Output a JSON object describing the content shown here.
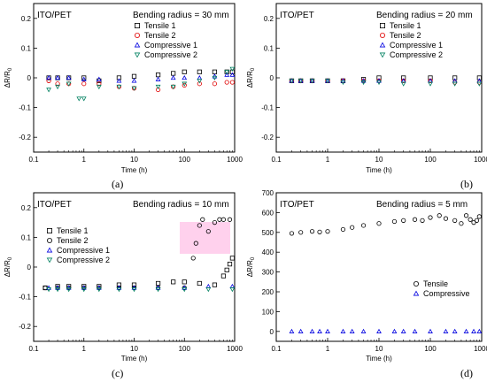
{
  "chart_data": [
    {
      "id": "a",
      "type": "scatter",
      "panel_label": "(a)",
      "sample_label": "ITO/PET",
      "annotation": "Bending radius = 30 mm",
      "xlabel": "Time (h)",
      "ylabel": "ΔR/R",
      "ylabel_sub": "0",
      "xscale": "log",
      "xlim": [
        0.1,
        1000
      ],
      "ylim": [
        -0.25,
        0.25
      ],
      "xticks": [
        0.1,
        1,
        10,
        100,
        1000
      ],
      "xticklabels": [
        "0.1",
        "1",
        "10",
        "100",
        "1000"
      ],
      "yticks": [
        -0.2,
        -0.1,
        0,
        0.1,
        0.2
      ],
      "yticklabels": [
        "-0.2",
        "-0.1",
        "0",
        "0.1",
        "0.2"
      ],
      "legend_position": "top-right",
      "series": [
        {
          "name": "Tensile 1",
          "marker": "square",
          "color": "#000000",
          "x": [
            0.2,
            0.3,
            0.5,
            1,
            2,
            5,
            10,
            30,
            60,
            100,
            200,
            400,
            700,
            900
          ],
          "y": [
            0.0,
            0.0,
            0.0,
            0.0,
            -0.01,
            0.0,
            0.005,
            0.01,
            0.015,
            0.02,
            0.02,
            0.02,
            0.02,
            0.02
          ]
        },
        {
          "name": "Tensile 2",
          "marker": "circle",
          "color": "#e00000",
          "x": [
            0.2,
            0.3,
            0.5,
            1,
            2,
            5,
            10,
            30,
            60,
            100,
            200,
            400,
            700,
            900
          ],
          "y": [
            -0.01,
            -0.02,
            -0.02,
            -0.02,
            -0.02,
            -0.03,
            -0.035,
            -0.04,
            -0.03,
            -0.025,
            -0.02,
            -0.02,
            -0.015,
            -0.015
          ]
        },
        {
          "name": "Compressive 1",
          "marker": "triangle-up",
          "color": "#0000e0",
          "x": [
            0.2,
            0.3,
            0.5,
            1,
            2,
            5,
            10,
            30,
            60,
            100,
            200,
            400,
            700,
            900
          ],
          "y": [
            0.0,
            0.0,
            0.0,
            -0.005,
            -0.005,
            -0.01,
            -0.01,
            -0.005,
            0.0,
            0.0,
            0.0,
            0.005,
            0.01,
            0.01
          ]
        },
        {
          "name": "Compressive 2",
          "marker": "triangle-down",
          "color": "#008060",
          "x": [
            0.2,
            0.3,
            0.5,
            0.8,
            1,
            2,
            5,
            10,
            30,
            60,
            100,
            200,
            400,
            700,
            900
          ],
          "y": [
            -0.04,
            -0.03,
            -0.02,
            -0.07,
            -0.07,
            -0.03,
            -0.03,
            -0.035,
            -0.03,
            -0.03,
            -0.02,
            -0.01,
            0.0,
            0.02,
            0.03
          ]
        }
      ]
    },
    {
      "id": "b",
      "type": "scatter",
      "panel_label": "(b)",
      "sample_label": "ITO/PET",
      "annotation": "Bending radius = 20 mm",
      "xlabel": "Time (h)",
      "ylabel": "ΔR/R",
      "ylabel_sub": "0",
      "xscale": "log",
      "xlim": [
        0.1,
        1000
      ],
      "ylim": [
        -0.25,
        0.25
      ],
      "xticks": [
        0.1,
        1,
        10,
        100,
        1000
      ],
      "xticklabels": [
        "0.1",
        "1",
        "10",
        "100",
        "1000"
      ],
      "yticks": [
        -0.2,
        -0.1,
        0,
        0.1,
        0.2
      ],
      "yticklabels": [
        "-0.2",
        "-0.1",
        "0",
        "0.1",
        "0.2"
      ],
      "legend_position": "top-right",
      "series": [
        {
          "name": "Tensile 1",
          "marker": "square",
          "color": "#000000",
          "x": [
            0.2,
            0.3,
            0.5,
            1,
            2,
            5,
            10,
            30,
            100,
            300,
            900
          ],
          "y": [
            -0.01,
            -0.01,
            -0.01,
            -0.01,
            -0.01,
            -0.005,
            0.0,
            0.0,
            0.0,
            0.0,
            0.0
          ]
        },
        {
          "name": "Tensile 2",
          "marker": "circle",
          "color": "#e00000",
          "x": [
            0.2,
            0.3,
            0.5,
            1,
            2,
            5,
            10,
            30,
            100,
            300,
            900
          ],
          "y": [
            -0.01,
            -0.01,
            -0.01,
            -0.01,
            -0.01,
            -0.01,
            -0.01,
            -0.01,
            -0.01,
            -0.015,
            -0.015
          ]
        },
        {
          "name": "Compressive 1",
          "marker": "triangle-up",
          "color": "#0000e0",
          "x": [
            0.2,
            0.3,
            0.5,
            1,
            2,
            5,
            10,
            30,
            100,
            300,
            900
          ],
          "y": [
            -0.01,
            -0.01,
            -0.01,
            -0.01,
            -0.01,
            -0.01,
            -0.01,
            -0.01,
            -0.01,
            -0.01,
            -0.01
          ]
        },
        {
          "name": "Compressive 2",
          "marker": "triangle-down",
          "color": "#008060",
          "x": [
            0.2,
            0.3,
            0.5,
            1,
            2,
            5,
            10,
            30,
            100,
            300,
            900
          ],
          "y": [
            -0.01,
            -0.01,
            -0.01,
            -0.01,
            -0.015,
            -0.015,
            -0.015,
            -0.02,
            -0.02,
            -0.02,
            -0.02
          ]
        }
      ]
    },
    {
      "id": "c",
      "type": "scatter",
      "panel_label": "(c)",
      "sample_label": "ITO/PET",
      "annotation": "Bending radius = 10 mm",
      "xlabel": "Time (h)",
      "ylabel": "ΔR/R",
      "ylabel_sub": "0",
      "xscale": "log",
      "xlim": [
        0.1,
        1000
      ],
      "ylim": [
        -0.25,
        0.25
      ],
      "xticks": [
        0.1,
        1,
        10,
        100,
        1000
      ],
      "xticklabels": [
        "0.1",
        "1",
        "10",
        "100",
        "1000"
      ],
      "yticks": [
        -0.2,
        -0.1,
        0,
        0.1,
        0.2
      ],
      "yticklabels": [
        "-0.2",
        "-0.1",
        "0",
        "0.1",
        "0.2"
      ],
      "legend_position": "top-left",
      "series": [
        {
          "name": "Tensile 1",
          "marker": "square",
          "color": "#000000",
          "x": [
            0.17,
            0.3,
            0.5,
            1,
            2,
            5,
            10,
            30,
            60,
            100,
            200,
            400,
            600,
            700,
            800,
            900
          ],
          "y": [
            -0.07,
            -0.065,
            -0.065,
            -0.065,
            -0.065,
            -0.06,
            -0.06,
            -0.055,
            -0.05,
            -0.05,
            -0.055,
            -0.06,
            -0.03,
            -0.01,
            0.01,
            0.03
          ]
        },
        {
          "name": "Tensile 2",
          "marker": "circle",
          "color": "#000000",
          "x": [
            0.17,
            0.3,
            0.5,
            1,
            2,
            5,
            10,
            30,
            100,
            150,
            170,
            200,
            230,
            300,
            400,
            500,
            600,
            800
          ],
          "y": [
            -0.07,
            -0.07,
            -0.07,
            -0.07,
            -0.07,
            -0.07,
            -0.07,
            -0.07,
            -0.07,
            0.03,
            0.08,
            0.14,
            0.16,
            0.12,
            0.15,
            0.16,
            0.16,
            0.16
          ]
        },
        {
          "name": "Compressive 1",
          "marker": "triangle-up",
          "color": "#0000e0",
          "x": [
            0.2,
            0.3,
            0.5,
            1,
            2,
            5,
            10,
            30,
            100,
            300,
            900
          ],
          "y": [
            -0.07,
            -0.07,
            -0.07,
            -0.07,
            -0.07,
            -0.07,
            -0.07,
            -0.07,
            -0.07,
            -0.065,
            -0.065
          ]
        },
        {
          "name": "Compressive 2",
          "marker": "triangle-down",
          "color": "#008060",
          "x": [
            0.2,
            0.3,
            0.5,
            1,
            2,
            5,
            10,
            30,
            100,
            300,
            900
          ],
          "y": [
            -0.075,
            -0.075,
            -0.075,
            -0.075,
            -0.075,
            -0.075,
            -0.075,
            -0.075,
            -0.075,
            -0.075,
            -0.075
          ]
        }
      ]
    },
    {
      "id": "d",
      "type": "scatter",
      "panel_label": "(d)",
      "sample_label": "ITO/PET",
      "annotation": "Bending radius = 5 mm",
      "xlabel": "Time (h)",
      "ylabel": "ΔR/R",
      "ylabel_sub": "0",
      "xscale": "log",
      "xlim": [
        0.1,
        1000
      ],
      "ylim": [
        -50,
        700
      ],
      "xticks": [
        0.1,
        1,
        10,
        100,
        1000
      ],
      "xticklabels": [
        "0.1",
        "1",
        "10",
        "100",
        "1000"
      ],
      "yticks": [
        0,
        100,
        200,
        300,
        400,
        500,
        600,
        700
      ],
      "yticklabels": [
        "0",
        "100",
        "200",
        "300",
        "400",
        "500",
        "600",
        "700"
      ],
      "legend_position": "right",
      "series": [
        {
          "name": "Tensile",
          "marker": "circle",
          "color": "#000000",
          "x": [
            0.2,
            0.3,
            0.5,
            0.7,
            1,
            2,
            3,
            5,
            10,
            20,
            30,
            50,
            70,
            100,
            150,
            200,
            300,
            400,
            500,
            600,
            700,
            800,
            900
          ],
          "y": [
            495,
            500,
            505,
            502,
            505,
            515,
            525,
            535,
            545,
            555,
            560,
            565,
            560,
            575,
            585,
            570,
            560,
            545,
            585,
            565,
            550,
            560,
            580
          ]
        },
        {
          "name": "Compressive",
          "marker": "triangle-up",
          "color": "#0000e0",
          "x": [
            0.2,
            0.3,
            0.5,
            0.7,
            1,
            2,
            3,
            5,
            10,
            20,
            30,
            50,
            100,
            200,
            300,
            500,
            700,
            900
          ],
          "y": [
            0,
            0,
            0,
            0,
            0,
            0,
            0,
            0,
            0,
            0,
            0,
            0,
            0,
            0,
            0,
            0,
            0,
            0
          ]
        }
      ]
    }
  ]
}
